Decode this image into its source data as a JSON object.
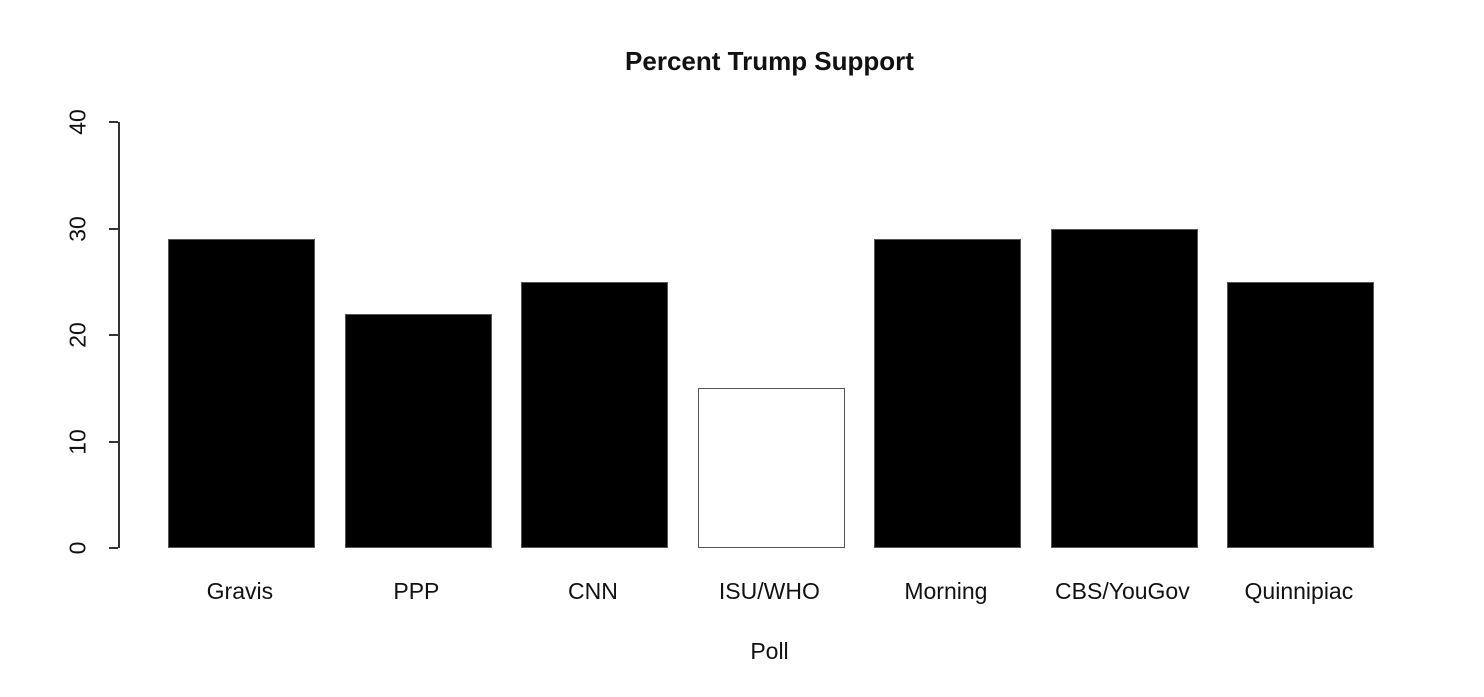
{
  "chart_data": {
    "type": "bar",
    "title": "Percent Trump Support",
    "xlabel": "Poll",
    "ylabel": "",
    "categories": [
      "Gravis",
      "PPP",
      "CNN",
      "ISU/WHO",
      "Morning",
      "CBS/YouGov",
      "Quinnipiac"
    ],
    "values": [
      29,
      22,
      25,
      15,
      29,
      30,
      25
    ],
    "bar_fills": [
      "#000000",
      "#000000",
      "#000000",
      "#ffffff",
      "#000000",
      "#000000",
      "#000000"
    ],
    "bar_border_color": "#555555",
    "ylim": [
      0,
      40
    ],
    "yticks": [
      0,
      10,
      20,
      30,
      40
    ],
    "grid": false,
    "legend": false
  },
  "colors": {
    "background": "#ffffff",
    "axis": "#333333",
    "text": "#111111"
  }
}
